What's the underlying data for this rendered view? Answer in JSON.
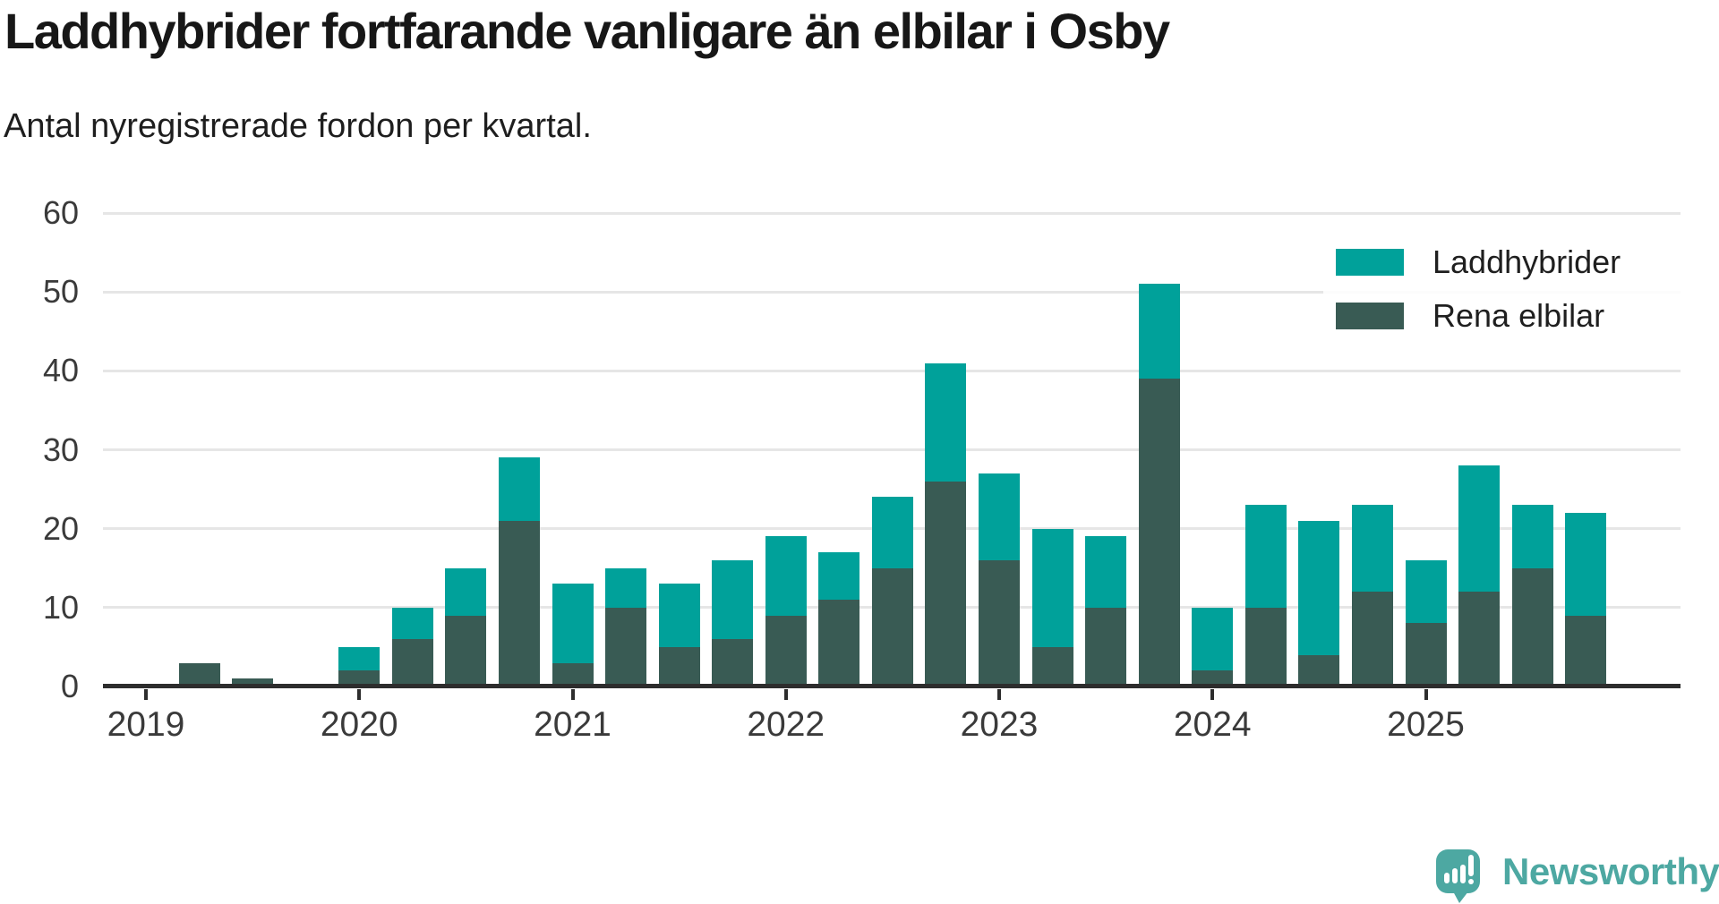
{
  "header": {
    "title": "Laddhybrider fortfarande vanligare än elbilar i Osby",
    "subtitle": "Antal nyregistrerade fordon per kvartal."
  },
  "legend": {
    "items": [
      {
        "label": "Laddhybrider",
        "color": "#00a19a"
      },
      {
        "label": "Rena elbilar",
        "color": "#395b54"
      }
    ]
  },
  "footer": {
    "brand": "Newsworthy",
    "brand_color": "#4da8a2"
  },
  "colors": {
    "laddhybrider": "#00a19a",
    "rena_elbilar": "#395b54",
    "gridline": "#e6e6e6",
    "axis": "#2d2d2d",
    "axis_text": "#3a3a3a",
    "title_text": "#171717"
  },
  "chart_data": {
    "type": "bar",
    "stacked": true,
    "title": "Laddhybrider fortfarande vanligare än elbilar i Osby",
    "subtitle": "Antal nyregistrerade fordon per kvartal.",
    "x": [
      "2019 Q1",
      "2019 Q2",
      "2019 Q3",
      "2019 Q4",
      "2020 Q1",
      "2020 Q2",
      "2020 Q3",
      "2020 Q4",
      "2021 Q1",
      "2021 Q2",
      "2021 Q3",
      "2021 Q4",
      "2022 Q1",
      "2022 Q2",
      "2022 Q3",
      "2022 Q4",
      "2023 Q1",
      "2023 Q2",
      "2023 Q3",
      "2023 Q4",
      "2024 Q1",
      "2024 Q2",
      "2024 Q3",
      "2024 Q4",
      "2025 Q1",
      "2025 Q2",
      "2025 Q3",
      "2025 Q4"
    ],
    "x_tick_labels": [
      "2019",
      "2020",
      "2021",
      "2022",
      "2023",
      "2024",
      "2025"
    ],
    "y_ticks": [
      0,
      10,
      20,
      30,
      40,
      50,
      60
    ],
    "ylim": [
      0,
      60
    ],
    "grid": "horizontal",
    "legend_position": "top-right",
    "series": [
      {
        "name": "Rena elbilar",
        "color": "#395b54",
        "stack_order": "bottom",
        "values": [
          0,
          3,
          1,
          0,
          2,
          6,
          9,
          21,
          3,
          10,
          5,
          6,
          9,
          11,
          15,
          26,
          16,
          5,
          10,
          39,
          2,
          10,
          4,
          12,
          8,
          12,
          15,
          9
        ]
      },
      {
        "name": "Laddhybrider",
        "color": "#00a19a",
        "stack_order": "top",
        "values": [
          0,
          0,
          0,
          0,
          3,
          4,
          6,
          8,
          10,
          5,
          8,
          10,
          10,
          6,
          9,
          15,
          11,
          15,
          9,
          12,
          8,
          13,
          17,
          11,
          8,
          16,
          8,
          13
        ]
      }
    ],
    "totals": [
      0,
      3,
      1,
      0,
      5,
      10,
      15,
      29,
      13,
      15,
      13,
      16,
      19,
      17,
      24,
      41,
      27,
      20,
      19,
      51,
      10,
      23,
      21,
      23,
      16,
      28,
      23,
      22
    ]
  }
}
